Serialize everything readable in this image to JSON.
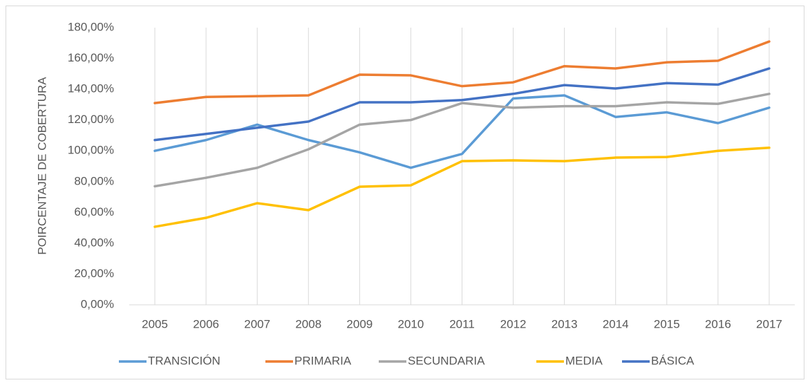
{
  "chart_data": {
    "type": "line",
    "ylabel": "POIRCENTAJE DE COBERTURA",
    "categories": [
      "2005",
      "2006",
      "2007",
      "2008",
      "2009",
      "2010",
      "2011",
      "2012",
      "2013",
      "2014",
      "2015",
      "2016",
      "2017"
    ],
    "series": [
      {
        "name": "TRANSICIÓN",
        "color": "#5b9bd5",
        "values": [
          100,
          107,
          117,
          107,
          99,
          89,
          98,
          134,
          136,
          122,
          125,
          118,
          128
        ]
      },
      {
        "name": "PRIMARIA",
        "color": "#ed7d31",
        "values": [
          131,
          135,
          135.5,
          136,
          149.5,
          149,
          142,
          144.5,
          155,
          153.5,
          157.5,
          158.5,
          171
        ]
      },
      {
        "name": "SECUNDARIA",
        "color": "#a5a5a5",
        "values": [
          77,
          82.5,
          89,
          101,
          117,
          120,
          131,
          128,
          129,
          129,
          131.5,
          130.5,
          137
        ]
      },
      {
        "name": "MEDIA",
        "color": "#ffc000",
        "values": [
          50.7,
          56.5,
          66,
          61.5,
          76.7,
          77.6,
          93.3,
          93.8,
          93.3,
          95.6,
          96,
          100,
          102
        ]
      },
      {
        "name": "BÁSICA",
        "color": "#4472c4",
        "values": [
          107,
          111,
          115,
          119,
          131.5,
          131.5,
          133,
          137,
          142.7,
          140.5,
          144,
          143,
          153.5
        ]
      }
    ],
    "ylim": [
      0,
      180
    ],
    "yticks": [
      {
        "value": 0,
        "label": "0,00%"
      },
      {
        "value": 20,
        "label": "20,00%"
      },
      {
        "value": 40,
        "label": "40,00%"
      },
      {
        "value": 60,
        "label": "60,00%"
      },
      {
        "value": 80,
        "label": "80,00%"
      },
      {
        "value": 100,
        "label": "100,00%"
      },
      {
        "value": 120,
        "label": "120,00%"
      },
      {
        "value": 140,
        "label": "140,00%"
      },
      {
        "value": 160,
        "label": "160,00%"
      },
      {
        "value": 180,
        "label": "180,00%"
      }
    ],
    "grid": true,
    "legend": "bottom"
  }
}
